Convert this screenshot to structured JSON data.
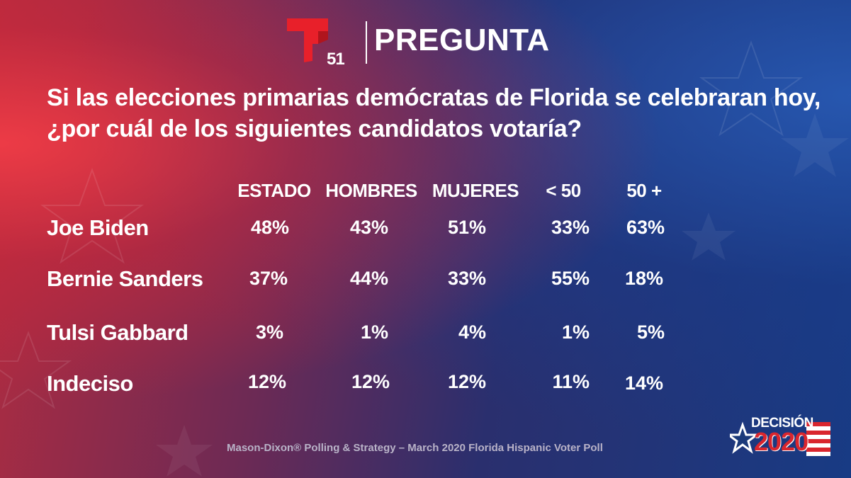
{
  "header": {
    "logo_number": "51",
    "title": "PREGUNTA"
  },
  "question": {
    "line1": "Si las elecciones primarias demócratas de Florida se celebraran hoy,",
    "line2": "¿por cuál de los siguientes candidatos votaría?"
  },
  "chart_data": {
    "type": "table",
    "columns": [
      "ESTADO",
      "HOMBRES",
      "MUJERES",
      "< 50",
      "50 +"
    ],
    "rows": [
      {
        "label": "Joe Biden",
        "values": [
          "48%",
          "43%",
          "51%",
          "33%",
          "63%"
        ]
      },
      {
        "label": "Bernie Sanders",
        "values": [
          "37%",
          "44%",
          "33%",
          "55%",
          "18%"
        ]
      },
      {
        "label": "Tulsi Gabbard",
        "values": [
          "3%",
          "1%",
          "4%",
          "1%",
          "5%"
        ]
      },
      {
        "label": "Indeciso",
        "values": [
          "12%",
          "12%",
          "12%",
          "11%",
          "14%"
        ]
      }
    ]
  },
  "footer": {
    "source": "Mason-Dixon® Polling & Strategy – March 2020 Florida Hispanic Voter Poll",
    "badge_top": "DECISIÓN",
    "badge_year": "2020"
  },
  "colors": {
    "brand_red": "#e8202a",
    "text": "#ffffff",
    "source_text": "#b9b3c8"
  }
}
